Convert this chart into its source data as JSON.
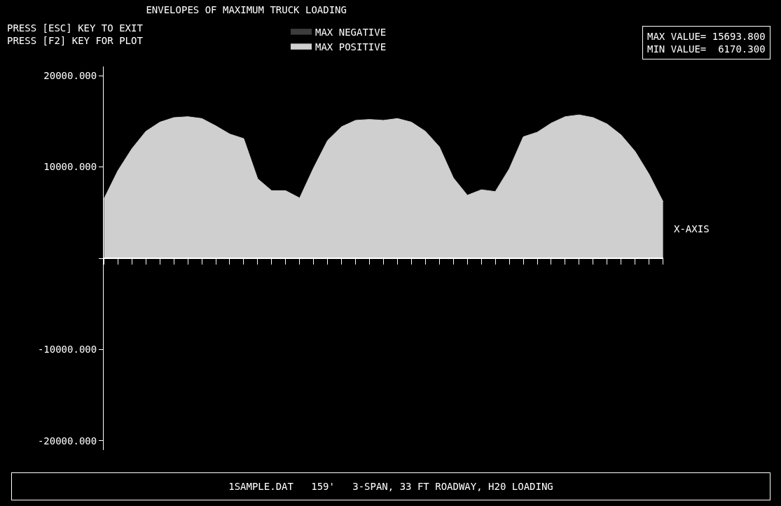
{
  "chart_data": {
    "type": "area",
    "title": "ENVELOPES OF MAXIMUM TRUCK LOADING",
    "xlabel": "X-AXIS",
    "annotations": [
      "PRESS [ESC] KEY TO EXIT\nPRESS [F2] KEY FOR PLOT",
      "MAX VALUE= 15693.800\nMIN VALUE=  6170.300",
      "1SAMPLE.DAT   159'   3-SPAN, 33 FT ROADWAY, H20 LOADING"
    ],
    "categories": [
      null,
      null,
      null,
      null,
      null,
      null,
      null,
      null,
      null,
      null,
      null,
      null,
      null,
      null,
      null,
      null,
      null,
      null,
      null,
      null,
      null,
      null,
      null,
      null,
      null,
      null,
      null,
      null,
      null,
      null,
      null,
      null,
      null,
      null,
      null,
      null,
      null,
      null,
      null,
      null,
      null
    ],
    "series": [
      {
        "name": "MAX NEGATIVE",
        "color": "#3c3c3c",
        "values": [
          null,
          null,
          null,
          null,
          null,
          null,
          null,
          null,
          null,
          null,
          null,
          null,
          null,
          null,
          null,
          null,
          null,
          null,
          null,
          null,
          null,
          null,
          null,
          null,
          null,
          null,
          null,
          null,
          null,
          null,
          null,
          null,
          null,
          null,
          null,
          null,
          null,
          null,
          null,
          null,
          null
        ]
      },
      {
        "name": "MAX POSITIVE",
        "color": "#cfcfcf",
        "values": [
          6500,
          9600,
          12000,
          13900,
          14900,
          15400,
          15500,
          15300,
          14500,
          13600,
          13100,
          8700,
          7400,
          7400,
          6600,
          9900,
          12900,
          14400,
          15100,
          15200,
          15100,
          15300,
          14900,
          13900,
          12200,
          8800,
          6900,
          7500,
          7300,
          9800,
          13300,
          13800,
          14800,
          15500,
          15700,
          15400,
          14700,
          13500,
          11700,
          9200,
          6200
        ]
      }
    ],
    "ylim": [
      -21000,
      21000
    ],
    "yticks": [
      {
        "value": -20000,
        "label": "-20000.000"
      },
      {
        "value": -10000,
        "label": "-10000.000"
      },
      {
        "value": 0,
        "label": null
      },
      {
        "value": 10000,
        "label": "10000.000"
      },
      {
        "value": 20000,
        "label": "20000.000"
      }
    ],
    "tick_labels": "y",
    "legend": "top"
  }
}
